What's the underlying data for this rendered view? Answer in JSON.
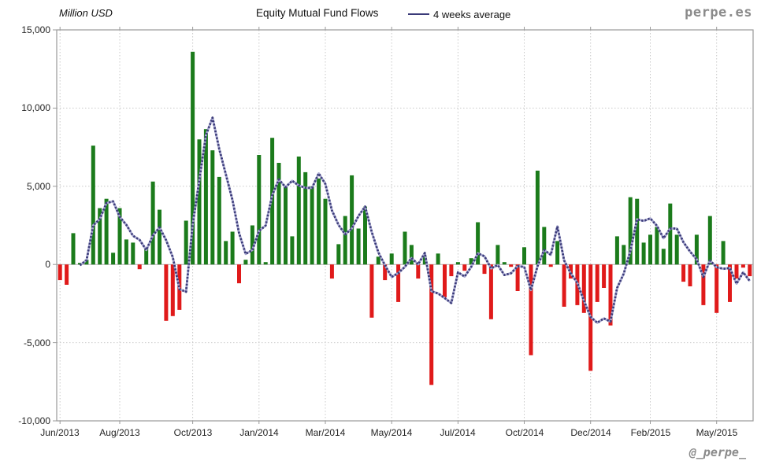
{
  "header": {
    "unit_label": "Million USD",
    "title": "Equity Mutual Fund Flows",
    "legend_label": "4 weeks average",
    "brand": "perpe.es"
  },
  "footer": {
    "handle": "@_perpe_"
  },
  "colors": {
    "positive_bar": "#1b7b1b",
    "negative_bar": "#e01a1a",
    "average_line_dark": "#3a3a78",
    "average_line_light": "#a8a8d0",
    "gridline": "#c9c9c9",
    "zero_line": "#b0b0b0",
    "border": "#9a9a9a",
    "axis_text": "#262626",
    "muted_text": "#8a8a8a"
  },
  "chart_data": {
    "type": "bar",
    "title": "Equity Mutual Fund Flows",
    "unit": "Million USD",
    "frequency": "weekly",
    "x_range": "Jun/2013 - May/2015",
    "grid": true,
    "legend_position": "top",
    "y_axis": {
      "min": -10000,
      "max": 15000,
      "step": 5000,
      "tick_labels": [
        "15,000",
        "10,000",
        "5,000",
        "0",
        "-5,000",
        "-10,000"
      ],
      "dotted_gridlines_at": [
        10000,
        5000,
        -5000
      ]
    },
    "x_axis": {
      "ticks": [
        {
          "label": "Jun/2013",
          "week": 0
        },
        {
          "label": "Aug/2013",
          "week": 9
        },
        {
          "label": "Oct/2013",
          "week": 20
        },
        {
          "label": "Jan/2014",
          "week": 30
        },
        {
          "label": "Mar/2014",
          "week": 40
        },
        {
          "label": "May/2014",
          "week": 50
        },
        {
          "label": "Jul/2014",
          "week": 60
        },
        {
          "label": "Oct/2014",
          "week": 70
        },
        {
          "label": "Dec/2014",
          "week": 80
        },
        {
          "label": "Feb/2015",
          "week": 89
        },
        {
          "label": "May/2015",
          "week": 99
        }
      ]
    },
    "series": [
      {
        "name": "Equity Mutual Fund Flows",
        "type": "bar",
        "values": [
          -1000,
          -1300,
          2000,
          100,
          300,
          7600,
          3600,
          4200,
          750,
          3600,
          1600,
          1400,
          -300,
          1000,
          5300,
          3500,
          -3600,
          -3300,
          -2900,
          2800,
          13600,
          8000,
          8650,
          7300,
          5600,
          1500,
          2100,
          -1200,
          300,
          2500,
          7000,
          150,
          8100,
          6500,
          5000,
          1800,
          6900,
          5900,
          5000,
          5500,
          4200,
          -900,
          1300,
          3100,
          5700,
          2300,
          3700,
          -3400,
          500,
          -1000,
          700,
          -2400,
          2100,
          1250,
          -900,
          500,
          -7700,
          700,
          -2100,
          -750,
          150,
          -400,
          400,
          2700,
          -600,
          -3500,
          1250,
          150,
          -150,
          -1700,
          1100,
          -5800,
          6000,
          2400,
          -150,
          1500,
          -2700,
          -900,
          -2600,
          -3100,
          -6800,
          -2400,
          -1500,
          -3900,
          1800,
          1250,
          4300,
          4200,
          1400,
          1900,
          2400,
          1000,
          3900,
          1900,
          -1100,
          -1400,
          1900,
          -2600,
          3100,
          -3100,
          1500,
          -2400,
          -900,
          -200,
          -750
        ]
      },
      {
        "name": "4 weeks average",
        "type": "line",
        "derivation": "trailing_mean_of_last_4_weekly_values_starting_week_4"
      }
    ]
  }
}
